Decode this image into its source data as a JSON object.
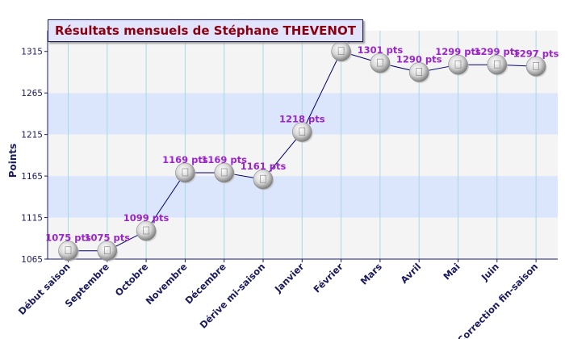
{
  "chart_data": {
    "type": "line",
    "title": "Résultats mensuels de Stéphane THEVENOT",
    "ylabel": "Points",
    "xlabel": "",
    "ylim": [
      1065,
      1340
    ],
    "yticks": [
      1065,
      1115,
      1165,
      1215,
      1265,
      1315
    ],
    "categories": [
      "Début saison",
      "Septembre",
      "Octobre",
      "Novembre",
      "Décembre",
      "Dérive mi-saison",
      "Janvier",
      "Février",
      "Mars",
      "Avril",
      "Mai",
      "Juin",
      "Correction fin-saison"
    ],
    "values": [
      1075,
      1075,
      1099,
      1169,
      1169,
      1161,
      1218,
      1315,
      1301,
      1290,
      1299,
      1299,
      1297
    ],
    "point_labels": [
      "1075 pts",
      "1075 pts",
      "1099 pts",
      "1169 pts",
      "1169 pts",
      "1161 pts",
      "1218 pts",
      "1315 pts",
      "1301 pts",
      "1290 pts",
      "1299 pts",
      "1299 pts",
      "1297 pts"
    ],
    "colors": {
      "line": "#00006a",
      "label": "#9a26c8",
      "axis_text": "#1b1b5e",
      "band_light": "#f4f4f4",
      "band_blue": "#dbe6fd",
      "grid_vertical": "#a6d8e6",
      "axis": "#1b1b5e",
      "title_text": "#8b0010",
      "title_bg": "#e2e4fb"
    }
  }
}
